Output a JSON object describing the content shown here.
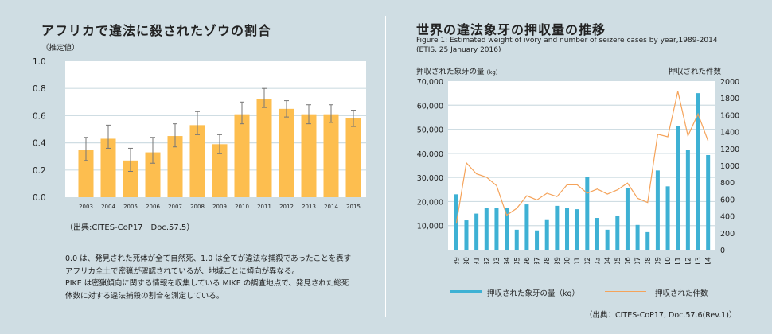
{
  "left": {
    "title": "アフリカで違法に殺されたゾウの割合",
    "unit_label": "（推定値）",
    "source": "（出典:CITES-CoP17　Doc.57.5）",
    "notes": [
      "0.0 は、発見された死体が全て自然死、1.0 は全てが違法な捕殺であったことを表す",
      "アフリカ全土で密猟が確認されているが、地域ごとに傾向が異なる。",
      "PIKE は密猟傾向に関する情報を収集している MIKE の調査地点で、発見された総死",
      "体数に対する違法捕殺の割合を測定している。"
    ]
  },
  "right": {
    "title": "世界の違法象牙の押収量の推移",
    "subtitle_line1": "Figure 1: Estimated weight of ivory and number of seizere cases by year,1989-2014",
    "subtitle_line2": "(ETIS, 25 January 2016)",
    "left_axis_label": "押収された象牙の量",
    "left_axis_unit": "(kg)",
    "right_axis_label": "押収された件数",
    "legend_bar": "押収された象牙の量（kg）",
    "legend_line": "押収された件数",
    "source": "（出典：CITES-CoP17, Doc.57.6(Rev.1)）"
  },
  "colors": {
    "background": "#cfdde3",
    "bar_orange": "#fdbe4f",
    "bar_blue": "#3eb1d4",
    "line_orange": "#f5a35a",
    "grid": "#cfdde3",
    "error_bar": "#777777"
  },
  "chart_data": [
    {
      "type": "bar",
      "title": "アフリカで違法に殺されたゾウの割合",
      "ylabel": "（推定値）",
      "xlabel": "",
      "ylim": [
        0,
        1.0
      ],
      "yticks": [
        "0.0",
        "0.2",
        "0.4",
        "0.6",
        "0.8",
        "1.0"
      ],
      "grid": true,
      "categories": [
        "2003",
        "2004",
        "2005",
        "2006",
        "2007",
        "2008",
        "2009",
        "2010",
        "2011",
        "2012",
        "2013",
        "2014",
        "2015"
      ],
      "values": [
        0.35,
        0.43,
        0.27,
        0.33,
        0.45,
        0.53,
        0.39,
        0.61,
        0.72,
        0.65,
        0.61,
        0.61,
        0.58
      ],
      "error_low": [
        0.27,
        0.36,
        0.19,
        0.25,
        0.37,
        0.46,
        0.32,
        0.54,
        0.66,
        0.59,
        0.54,
        0.55,
        0.52
      ],
      "error_high": [
        0.44,
        0.53,
        0.36,
        0.44,
        0.54,
        0.63,
        0.46,
        0.7,
        0.8,
        0.71,
        0.68,
        0.68,
        0.64
      ]
    },
    {
      "type": "bar+line",
      "title": "世界の違法象牙の押収量の推移",
      "categories": [
        "1989",
        "1990",
        "1991",
        "1992",
        "1993",
        "1994",
        "1995",
        "1996",
        "1997",
        "1998",
        "1999",
        "2000",
        "2001",
        "2002",
        "2003",
        "2004",
        "2005",
        "2006",
        "2007",
        "2008",
        "2009",
        "2010",
        "2011",
        "2012",
        "2013",
        "2014"
      ],
      "ylim_left": [
        0,
        70000
      ],
      "yticks_left": [
        "10,000",
        "20,000",
        "30,000",
        "40,000",
        "50,000",
        "60,000",
        "70,000"
      ],
      "ylim_right": [
        0,
        2000
      ],
      "yticks_right": [
        "0",
        "200",
        "400",
        "600",
        "800",
        "1000",
        "1200",
        "1400",
        "1600",
        "1800",
        "2000"
      ],
      "grid": true,
      "legend": "bottom",
      "series": [
        {
          "name": "押収された象牙の量（kg）",
          "type": "bar",
          "axis": "left",
          "values": [
            23000,
            12200,
            15000,
            17200,
            17200,
            17200,
            8300,
            18800,
            8000,
            12300,
            18200,
            17500,
            16800,
            30300,
            13200,
            8300,
            14200,
            25700,
            10300,
            7300,
            32900,
            26300,
            51200,
            41300,
            65000,
            39300
          ]
        },
        {
          "name": "押収された件数",
          "type": "line",
          "axis": "right",
          "values": [
            310,
            1030,
            900,
            860,
            760,
            410,
            490,
            640,
            590,
            670,
            630,
            770,
            770,
            670,
            720,
            660,
            710,
            790,
            610,
            560,
            1370,
            1340,
            1880,
            1350,
            1610,
            1290
          ]
        }
      ]
    }
  ]
}
